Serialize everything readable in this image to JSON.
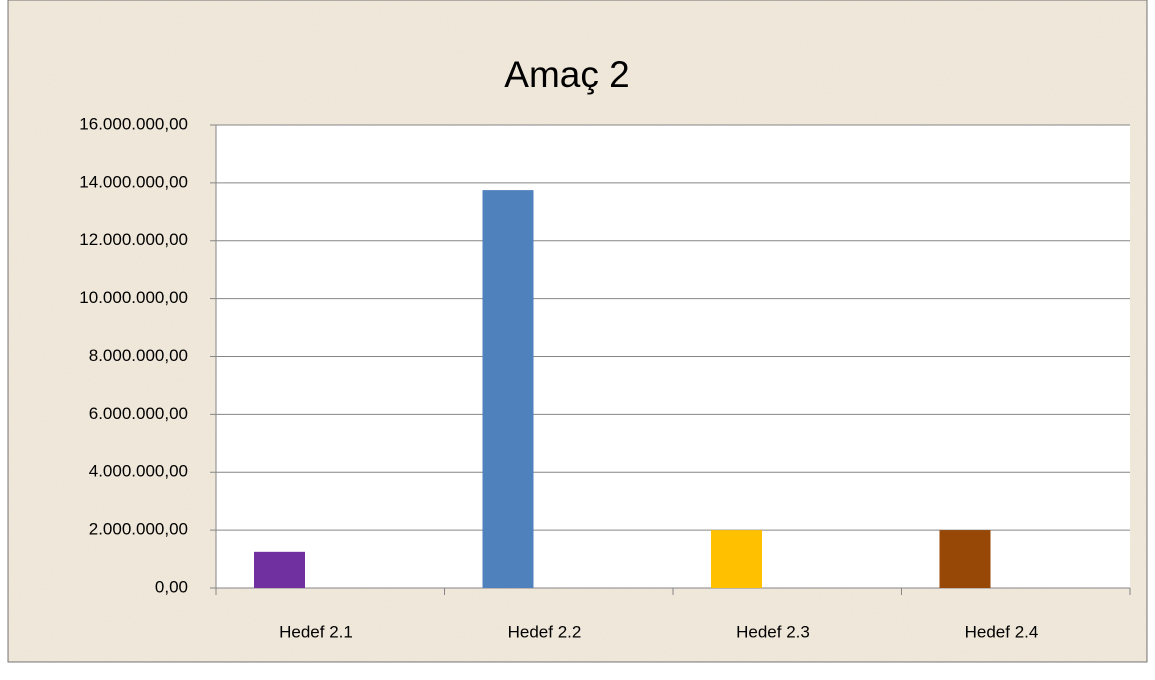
{
  "chart_data": {
    "type": "bar",
    "title": "Amaç 2",
    "categories": [
      "Hedef 2.1",
      "Hedef 2.2",
      "Hedef 2.3",
      "Hedef 2.4"
    ],
    "values": [
      1250000,
      13750000,
      2000000,
      2000000
    ],
    "colors": [
      "#7030a0",
      "#4f81bd",
      "#ffc000",
      "#974706"
    ],
    "ylim": [
      0,
      16000000
    ],
    "yticks": [
      {
        "value": 0,
        "label": "0,00"
      },
      {
        "value": 2000000,
        "label": "2.000.000,00"
      },
      {
        "value": 4000000,
        "label": "4.000.000,00"
      },
      {
        "value": 6000000,
        "label": "6.000.000,00"
      },
      {
        "value": 8000000,
        "label": "8.000.000,00"
      },
      {
        "value": 10000000,
        "label": "10.000.000,00"
      },
      {
        "value": 12000000,
        "label": "12.000.000,00"
      },
      {
        "value": 14000000,
        "label": "14.000.000,00"
      },
      {
        "value": 16000000,
        "label": "16.000.000,00"
      }
    ],
    "grid": true
  }
}
